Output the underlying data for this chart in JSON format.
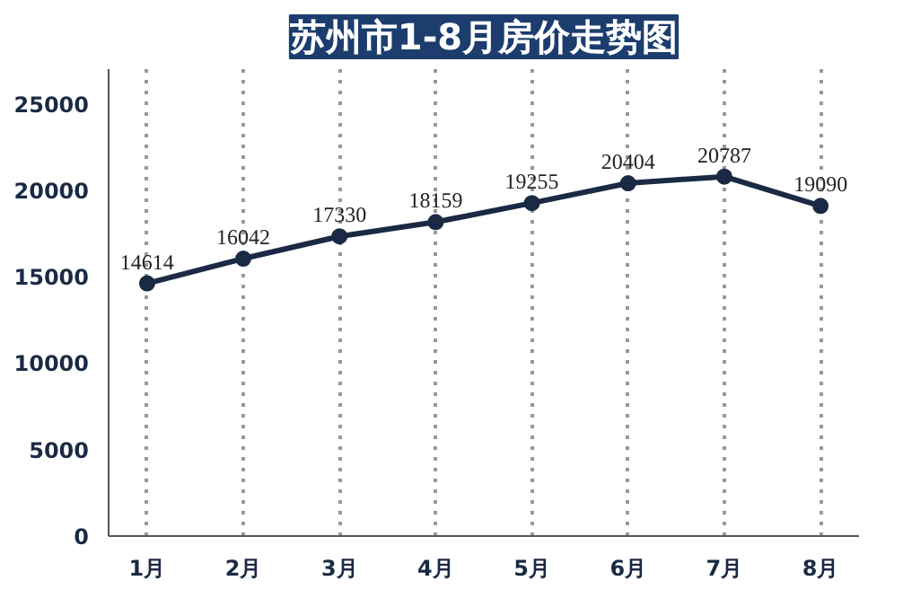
{
  "chart_data": {
    "type": "line",
    "title": "苏州市1-8月房价走势图",
    "categories": [
      "1月",
      "2月",
      "3月",
      "4月",
      "5月",
      "6月",
      "7月",
      "8月"
    ],
    "series": [
      {
        "color": "#1a2a44",
        "values": [
          14614,
          16042,
          17330,
          18159,
          19255,
          20404,
          20787,
          19090
        ]
      }
    ],
    "data_labels": true,
    "ylim": [
      0,
      27000
    ],
    "yticks": [
      0,
      5000,
      10000,
      15000,
      20000,
      25000
    ],
    "grid": "x",
    "marker": "circle",
    "line_style": "solid"
  }
}
